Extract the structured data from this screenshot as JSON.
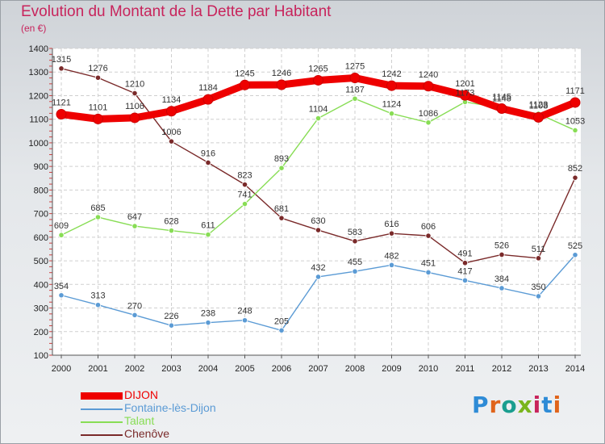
{
  "title": "Evolution du Montant de la Dette par Habitant",
  "subtitle": "(en €)",
  "logo": {
    "text": "Proxiti",
    "letter_colors": [
      "#2e8bd6",
      "#e0641b",
      "#1a9e8f",
      "#7ab51d",
      "#c8245c",
      "#2e8bd6",
      "#e0641b"
    ]
  },
  "chart_data": {
    "type": "line",
    "x": [
      2000,
      2001,
      2002,
      2003,
      2004,
      2005,
      2006,
      2007,
      2008,
      2009,
      2010,
      2011,
      2012,
      2013,
      2014
    ],
    "ylim": [
      100,
      1400
    ],
    "yticks": [
      100,
      200,
      300,
      400,
      500,
      600,
      700,
      800,
      900,
      1000,
      1100,
      1200,
      1300,
      1400
    ],
    "grid": true,
    "legend_position": "bottom-left",
    "series": [
      {
        "name": "DIJON",
        "color": "#ee0000",
        "values": [
          1121,
          1101,
          1106,
          1134,
          1184,
          1245,
          1246,
          1265,
          1275,
          1242,
          1240,
          1201,
          1145,
          1108,
          1171
        ]
      },
      {
        "name": "Fontaine-lès-Dijon",
        "color": "#5b9bd5",
        "values": [
          354,
          313,
          270,
          226,
          238,
          248,
          205,
          432,
          455,
          482,
          451,
          417,
          384,
          350,
          525
        ]
      },
      {
        "name": "Talant",
        "color": "#88dd55",
        "values": [
          609,
          685,
          647,
          628,
          611,
          741,
          893,
          1104,
          1187,
          1124,
          1086,
          1173,
          1148,
          1123,
          1053
        ]
      },
      {
        "name": "Chenôve",
        "color": "#7a2a2a",
        "values": [
          1315,
          1276,
          1210,
          1006,
          916,
          823,
          681,
          630,
          583,
          616,
          606,
          491,
          526,
          511,
          852
        ]
      }
    ]
  }
}
